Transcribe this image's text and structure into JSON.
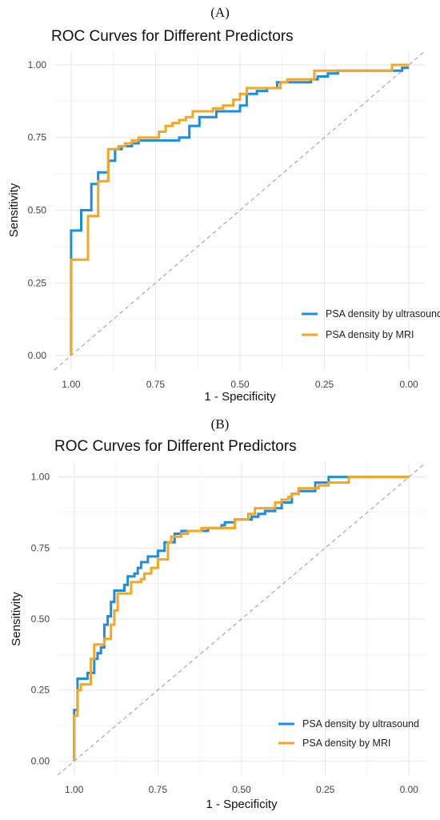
{
  "colors": {
    "ultrasound": "#1c8ee0",
    "mri": "#f5a623",
    "grid": "#e6e6e6",
    "diagonal": "#999999"
  },
  "chart_data": [
    {
      "panel": "(A)",
      "type": "line",
      "title": "ROC Curves for Different Predictors",
      "xlabel": "1 - Specificity",
      "ylabel": "Sensitivity",
      "x_reversed": true,
      "xlim": [
        1.0,
        0.0
      ],
      "ylim": [
        0.0,
        1.0
      ],
      "x_ticks": [
        "1.00",
        "0.75",
        "0.50",
        "0.25",
        "0.00"
      ],
      "y_ticks": [
        "0.00",
        "0.25",
        "0.50",
        "0.75",
        "1.00"
      ],
      "grid": true,
      "legend_position": "bottom-right",
      "reference_line": "diagonal-dashed",
      "series": [
        {
          "name": "PSA density by ultrasound",
          "color_key": "ultrasound",
          "points": [
            [
              1.0,
              0.0
            ],
            [
              1.0,
              0.33
            ],
            [
              1.0,
              0.43
            ],
            [
              0.97,
              0.43
            ],
            [
              0.97,
              0.5
            ],
            [
              0.94,
              0.5
            ],
            [
              0.94,
              0.59
            ],
            [
              0.92,
              0.59
            ],
            [
              0.92,
              0.63
            ],
            [
              0.89,
              0.63
            ],
            [
              0.89,
              0.67
            ],
            [
              0.87,
              0.67
            ],
            [
              0.87,
              0.71
            ],
            [
              0.85,
              0.71
            ],
            [
              0.85,
              0.72
            ],
            [
              0.82,
              0.72
            ],
            [
              0.82,
              0.73
            ],
            [
              0.8,
              0.73
            ],
            [
              0.8,
              0.74
            ],
            [
              0.68,
              0.74
            ],
            [
              0.68,
              0.75
            ],
            [
              0.65,
              0.75
            ],
            [
              0.65,
              0.79
            ],
            [
              0.62,
              0.79
            ],
            [
              0.62,
              0.82
            ],
            [
              0.57,
              0.82
            ],
            [
              0.57,
              0.84
            ],
            [
              0.5,
              0.84
            ],
            [
              0.5,
              0.86
            ],
            [
              0.48,
              0.86
            ],
            [
              0.48,
              0.9
            ],
            [
              0.45,
              0.9
            ],
            [
              0.45,
              0.91
            ],
            [
              0.42,
              0.91
            ],
            [
              0.42,
              0.92
            ],
            [
              0.39,
              0.92
            ],
            [
              0.39,
              0.94
            ],
            [
              0.29,
              0.94
            ],
            [
              0.29,
              0.95
            ],
            [
              0.27,
              0.95
            ],
            [
              0.27,
              0.96
            ],
            [
              0.24,
              0.96
            ],
            [
              0.24,
              0.97
            ],
            [
              0.21,
              0.97
            ],
            [
              0.21,
              0.98
            ],
            [
              0.02,
              0.98
            ],
            [
              0.02,
              0.99
            ],
            [
              0.0,
              0.99
            ]
          ]
        },
        {
          "name": "PSA density by MRI",
          "color_key": "mri",
          "points": [
            [
              1.0,
              0.0
            ],
            [
              1.0,
              0.33
            ],
            [
              0.95,
              0.33
            ],
            [
              0.95,
              0.48
            ],
            [
              0.92,
              0.48
            ],
            [
              0.92,
              0.6
            ],
            [
              0.89,
              0.6
            ],
            [
              0.89,
              0.71
            ],
            [
              0.86,
              0.71
            ],
            [
              0.86,
              0.72
            ],
            [
              0.84,
              0.72
            ],
            [
              0.84,
              0.73
            ],
            [
              0.82,
              0.73
            ],
            [
              0.82,
              0.74
            ],
            [
              0.8,
              0.74
            ],
            [
              0.8,
              0.75
            ],
            [
              0.74,
              0.75
            ],
            [
              0.74,
              0.77
            ],
            [
              0.72,
              0.77
            ],
            [
              0.72,
              0.79
            ],
            [
              0.7,
              0.79
            ],
            [
              0.7,
              0.8
            ],
            [
              0.68,
              0.8
            ],
            [
              0.68,
              0.81
            ],
            [
              0.66,
              0.81
            ],
            [
              0.66,
              0.82
            ],
            [
              0.64,
              0.82
            ],
            [
              0.64,
              0.84
            ],
            [
              0.58,
              0.84
            ],
            [
              0.58,
              0.85
            ],
            [
              0.55,
              0.85
            ],
            [
              0.55,
              0.86
            ],
            [
              0.52,
              0.86
            ],
            [
              0.52,
              0.88
            ],
            [
              0.5,
              0.88
            ],
            [
              0.5,
              0.9
            ],
            [
              0.48,
              0.9
            ],
            [
              0.48,
              0.92
            ],
            [
              0.38,
              0.92
            ],
            [
              0.38,
              0.94
            ],
            [
              0.36,
              0.94
            ],
            [
              0.36,
              0.95
            ],
            [
              0.28,
              0.95
            ],
            [
              0.28,
              0.98
            ],
            [
              0.05,
              0.98
            ],
            [
              0.05,
              1.0
            ],
            [
              0.0,
              1.0
            ]
          ]
        }
      ]
    },
    {
      "panel": "(B)",
      "type": "line",
      "title": "ROC Curves for Different Predictors",
      "xlabel": "1 - Specificity",
      "ylabel": "Sensitivity",
      "x_reversed": true,
      "xlim": [
        1.0,
        0.0
      ],
      "ylim": [
        0.0,
        1.0
      ],
      "x_ticks": [
        "1.00",
        "0.75",
        "0.50",
        "0.25",
        "0.00"
      ],
      "y_ticks": [
        "0.00",
        "0.25",
        "0.50",
        "0.75",
        "1.00"
      ],
      "grid": true,
      "legend_position": "bottom-right",
      "reference_line": "diagonal-dashed",
      "series": [
        {
          "name": "PSA density by ultrasound",
          "color_key": "ultrasound",
          "points": [
            [
              1.0,
              0.0
            ],
            [
              1.0,
              0.18
            ],
            [
              0.99,
              0.18
            ],
            [
              0.99,
              0.29
            ],
            [
              0.96,
              0.29
            ],
            [
              0.96,
              0.31
            ],
            [
              0.94,
              0.31
            ],
            [
              0.94,
              0.36
            ],
            [
              0.93,
              0.36
            ],
            [
              0.93,
              0.38
            ],
            [
              0.92,
              0.38
            ],
            [
              0.92,
              0.4
            ],
            [
              0.91,
              0.4
            ],
            [
              0.91,
              0.48
            ],
            [
              0.9,
              0.48
            ],
            [
              0.9,
              0.51
            ],
            [
              0.89,
              0.51
            ],
            [
              0.89,
              0.56
            ],
            [
              0.88,
              0.56
            ],
            [
              0.88,
              0.6
            ],
            [
              0.85,
              0.6
            ],
            [
              0.85,
              0.62
            ],
            [
              0.84,
              0.62
            ],
            [
              0.84,
              0.65
            ],
            [
              0.82,
              0.65
            ],
            [
              0.82,
              0.66
            ],
            [
              0.81,
              0.66
            ],
            [
              0.81,
              0.68
            ],
            [
              0.8,
              0.68
            ],
            [
              0.8,
              0.7
            ],
            [
              0.78,
              0.7
            ],
            [
              0.78,
              0.72
            ],
            [
              0.75,
              0.72
            ],
            [
              0.75,
              0.74
            ],
            [
              0.73,
              0.74
            ],
            [
              0.73,
              0.77
            ],
            [
              0.7,
              0.77
            ],
            [
              0.7,
              0.8
            ],
            [
              0.68,
              0.8
            ],
            [
              0.68,
              0.81
            ],
            [
              0.6,
              0.81
            ],
            [
              0.6,
              0.82
            ],
            [
              0.56,
              0.82
            ],
            [
              0.56,
              0.83
            ],
            [
              0.55,
              0.83
            ],
            [
              0.55,
              0.84
            ],
            [
              0.52,
              0.84
            ],
            [
              0.52,
              0.85
            ],
            [
              0.47,
              0.85
            ],
            [
              0.47,
              0.86
            ],
            [
              0.45,
              0.86
            ],
            [
              0.45,
              0.87
            ],
            [
              0.43,
              0.87
            ],
            [
              0.43,
              0.88
            ],
            [
              0.4,
              0.88
            ],
            [
              0.4,
              0.89
            ],
            [
              0.38,
              0.89
            ],
            [
              0.38,
              0.91
            ],
            [
              0.35,
              0.91
            ],
            [
              0.35,
              0.94
            ],
            [
              0.33,
              0.94
            ],
            [
              0.33,
              0.95
            ],
            [
              0.28,
              0.95
            ],
            [
              0.28,
              0.98
            ],
            [
              0.24,
              0.98
            ],
            [
              0.24,
              1.0
            ],
            [
              0.0,
              1.0
            ]
          ]
        },
        {
          "name": "PSA density by MRI",
          "color_key": "mri",
          "points": [
            [
              1.0,
              0.0
            ],
            [
              1.0,
              0.16
            ],
            [
              0.99,
              0.16
            ],
            [
              0.99,
              0.25
            ],
            [
              0.98,
              0.25
            ],
            [
              0.98,
              0.27
            ],
            [
              0.95,
              0.27
            ],
            [
              0.95,
              0.36
            ],
            [
              0.94,
              0.36
            ],
            [
              0.94,
              0.41
            ],
            [
              0.91,
              0.41
            ],
            [
              0.91,
              0.43
            ],
            [
              0.89,
              0.43
            ],
            [
              0.89,
              0.48
            ],
            [
              0.88,
              0.48
            ],
            [
              0.88,
              0.53
            ],
            [
              0.87,
              0.53
            ],
            [
              0.87,
              0.59
            ],
            [
              0.83,
              0.59
            ],
            [
              0.83,
              0.63
            ],
            [
              0.8,
              0.63
            ],
            [
              0.8,
              0.64
            ],
            [
              0.79,
              0.64
            ],
            [
              0.79,
              0.66
            ],
            [
              0.77,
              0.66
            ],
            [
              0.77,
              0.68
            ],
            [
              0.75,
              0.68
            ],
            [
              0.75,
              0.71
            ],
            [
              0.72,
              0.71
            ],
            [
              0.72,
              0.77
            ],
            [
              0.71,
              0.77
            ],
            [
              0.71,
              0.79
            ],
            [
              0.68,
              0.79
            ],
            [
              0.68,
              0.8
            ],
            [
              0.66,
              0.8
            ],
            [
              0.66,
              0.81
            ],
            [
              0.62,
              0.81
            ],
            [
              0.62,
              0.82
            ],
            [
              0.52,
              0.82
            ],
            [
              0.52,
              0.85
            ],
            [
              0.48,
              0.85
            ],
            [
              0.48,
              0.87
            ],
            [
              0.46,
              0.87
            ],
            [
              0.46,
              0.89
            ],
            [
              0.4,
              0.89
            ],
            [
              0.4,
              0.91
            ],
            [
              0.38,
              0.91
            ],
            [
              0.38,
              0.92
            ],
            [
              0.36,
              0.92
            ],
            [
              0.36,
              0.93
            ],
            [
              0.35,
              0.93
            ],
            [
              0.35,
              0.94
            ],
            [
              0.33,
              0.94
            ],
            [
              0.33,
              0.96
            ],
            [
              0.27,
              0.96
            ],
            [
              0.27,
              0.97
            ],
            [
              0.24,
              0.97
            ],
            [
              0.24,
              0.98
            ],
            [
              0.18,
              0.98
            ],
            [
              0.18,
              1.0
            ],
            [
              0.0,
              1.0
            ]
          ]
        }
      ]
    }
  ]
}
